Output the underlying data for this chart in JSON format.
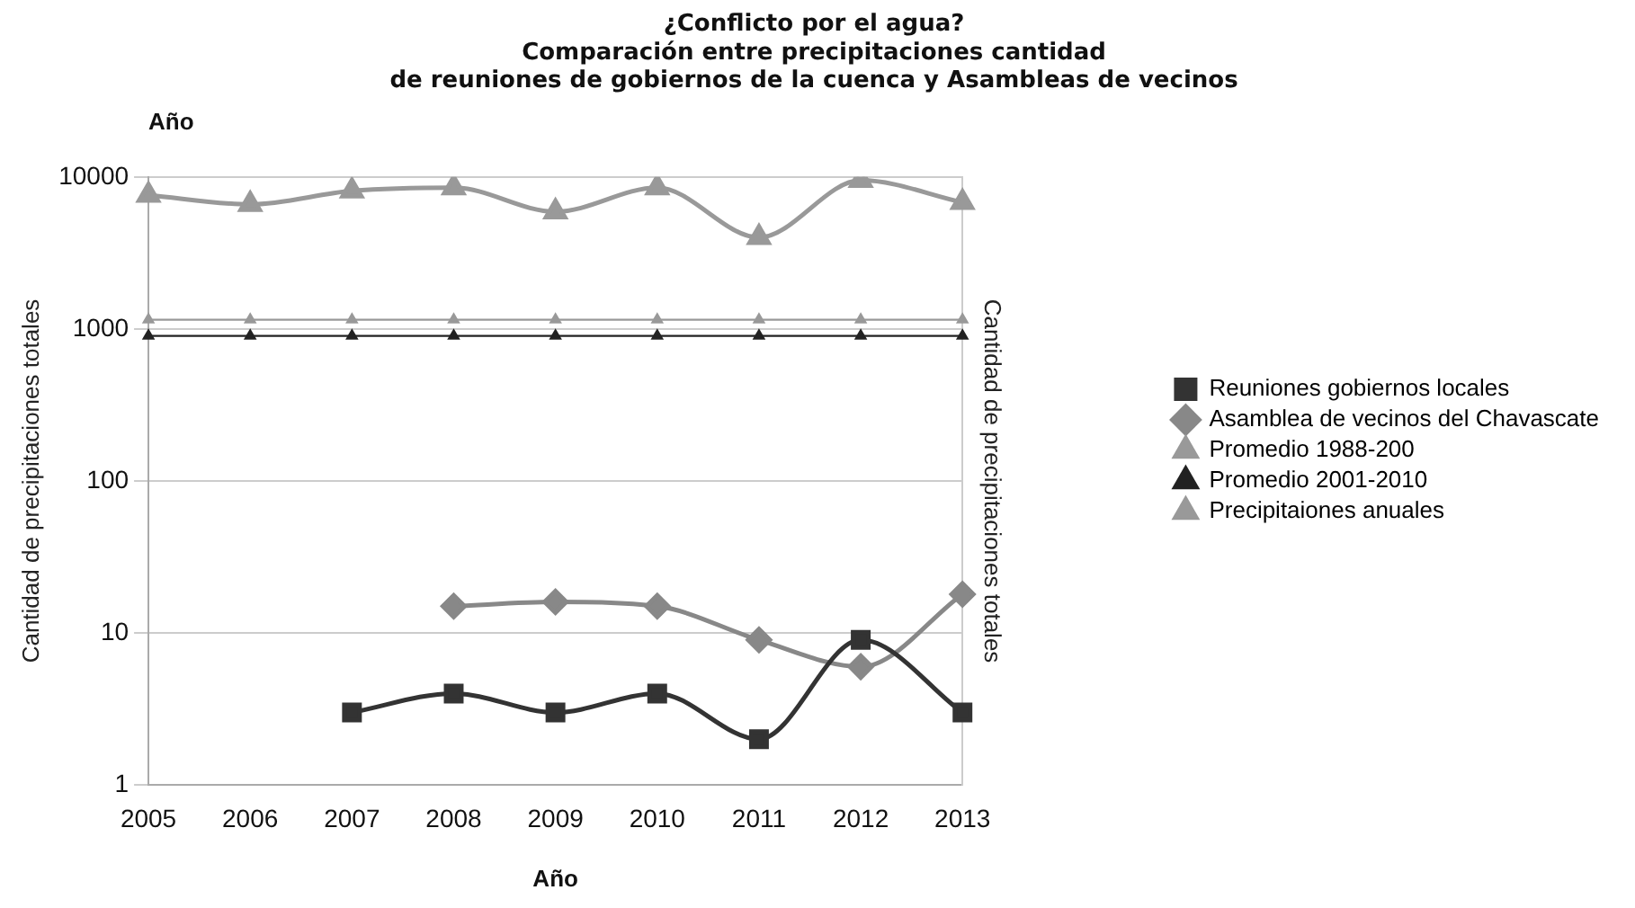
{
  "chart_data": {
    "type": "line",
    "title": "¿Conflicto por el agua?\nComparación entre precipitaciones cantidad\nde reuniones de gobiernos de la cuenca y Asambleas de vecinos",
    "categories": [
      "2005",
      "2006",
      "2007",
      "2008",
      "2009",
      "2010",
      "2011",
      "2012",
      "2013"
    ],
    "series": [
      {
        "name": "Reuniones gobiernos locales",
        "color": "#333333",
        "marker": "square",
        "values": [
          null,
          null,
          3,
          4,
          3,
          4,
          2,
          9,
          3
        ]
      },
      {
        "name": "Asamblea de vecinos del Chavascate",
        "color": "#888888",
        "marker": "diamond",
        "values": [
          null,
          null,
          null,
          15,
          16,
          15,
          9,
          6,
          18
        ]
      },
      {
        "name": "Promedio 1988-200",
        "color": "#999999",
        "marker": "triangle",
        "values": [
          1150,
          1150,
          1150,
          1150,
          1150,
          1150,
          1150,
          1150,
          1150
        ]
      },
      {
        "name": "Promedio 2001-2010",
        "color": "#222222",
        "marker": "triangle",
        "values": [
          900,
          900,
          900,
          900,
          900,
          900,
          900,
          900,
          900
        ]
      },
      {
        "name": "Precipitaiones anuales",
        "color": "#999999",
        "marker": "triangle",
        "values": [
          7600,
          6600,
          8100,
          8500,
          5900,
          8500,
          4000,
          9500,
          6800
        ]
      }
    ],
    "xlabel": "Año",
    "x2label": "Año",
    "ylabel": "Cantidad de precipitaciones totales",
    "y2label": "Cantidad de precipitaciones totales",
    "log": "y",
    "ylim": [
      1,
      10000
    ],
    "yticks": [
      1,
      10,
      100,
      1000,
      10000
    ],
    "grid": "y",
    "legend": "right"
  }
}
